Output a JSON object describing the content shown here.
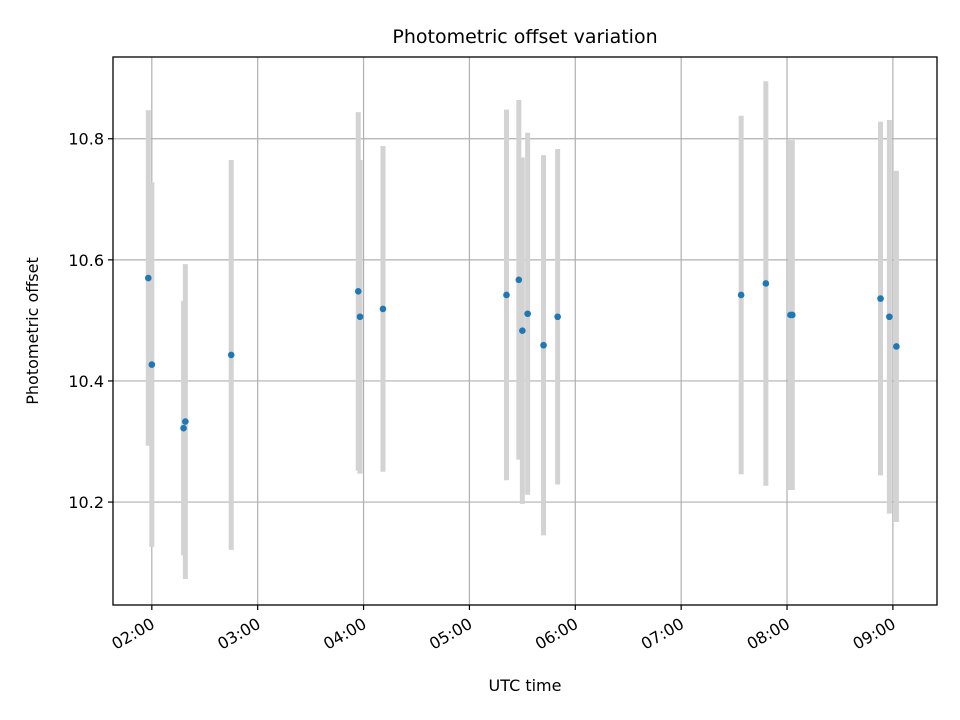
{
  "chart_data": {
    "type": "scatter",
    "title": "Photometric offset variation",
    "xlabel": "UTC time",
    "ylabel": "Photometric offset",
    "x_ticks": [
      "02:00",
      "03:00",
      "04:00",
      "05:00",
      "06:00",
      "07:00",
      "08:00",
      "09:00"
    ],
    "xlim": [
      "01:38",
      "09:25"
    ],
    "y_ticks": [
      "10.2",
      "10.4",
      "10.6",
      "10.8"
    ],
    "ylim": [
      10.03,
      10.935
    ],
    "grid": true,
    "point_color": "#1f77b4",
    "errorbar_color": "#d3d3d3",
    "points": [
      {
        "t": "01:58",
        "y": 10.57,
        "err": 0.277
      },
      {
        "t": "02:00",
        "y": 10.427,
        "err": 0.301
      },
      {
        "t": "02:18",
        "y": 10.322,
        "err": 0.21
      },
      {
        "t": "02:19",
        "y": 10.333,
        "err": 0.26
      },
      {
        "t": "02:45",
        "y": 10.443,
        "err": 0.322
      },
      {
        "t": "03:57",
        "y": 10.548,
        "err": 0.296
      },
      {
        "t": "03:58",
        "y": 10.506,
        "err": 0.259
      },
      {
        "t": "04:11",
        "y": 10.519,
        "err": 0.269
      },
      {
        "t": "05:21",
        "y": 10.542,
        "err": 0.306
      },
      {
        "t": "05:28",
        "y": 10.567,
        "err": 0.297
      },
      {
        "t": "05:30",
        "y": 10.483,
        "err": 0.286
      },
      {
        "t": "05:33",
        "y": 10.511,
        "err": 0.299
      },
      {
        "t": "05:42",
        "y": 10.459,
        "err": 0.314
      },
      {
        "t": "05:50",
        "y": 10.506,
        "err": 0.277
      },
      {
        "t": "07:34",
        "y": 10.542,
        "err": 0.296
      },
      {
        "t": "07:48",
        "y": 10.561,
        "err": 0.334
      },
      {
        "t": "08:02",
        "y": 10.509,
        "err": 0.289
      },
      {
        "t": "08:03",
        "y": 10.509,
        "err": 0.289
      },
      {
        "t": "08:53",
        "y": 10.536,
        "err": 0.292
      },
      {
        "t": "08:58",
        "y": 10.506,
        "err": 0.325
      },
      {
        "t": "09:02",
        "y": 10.457,
        "err": 0.29
      }
    ]
  }
}
